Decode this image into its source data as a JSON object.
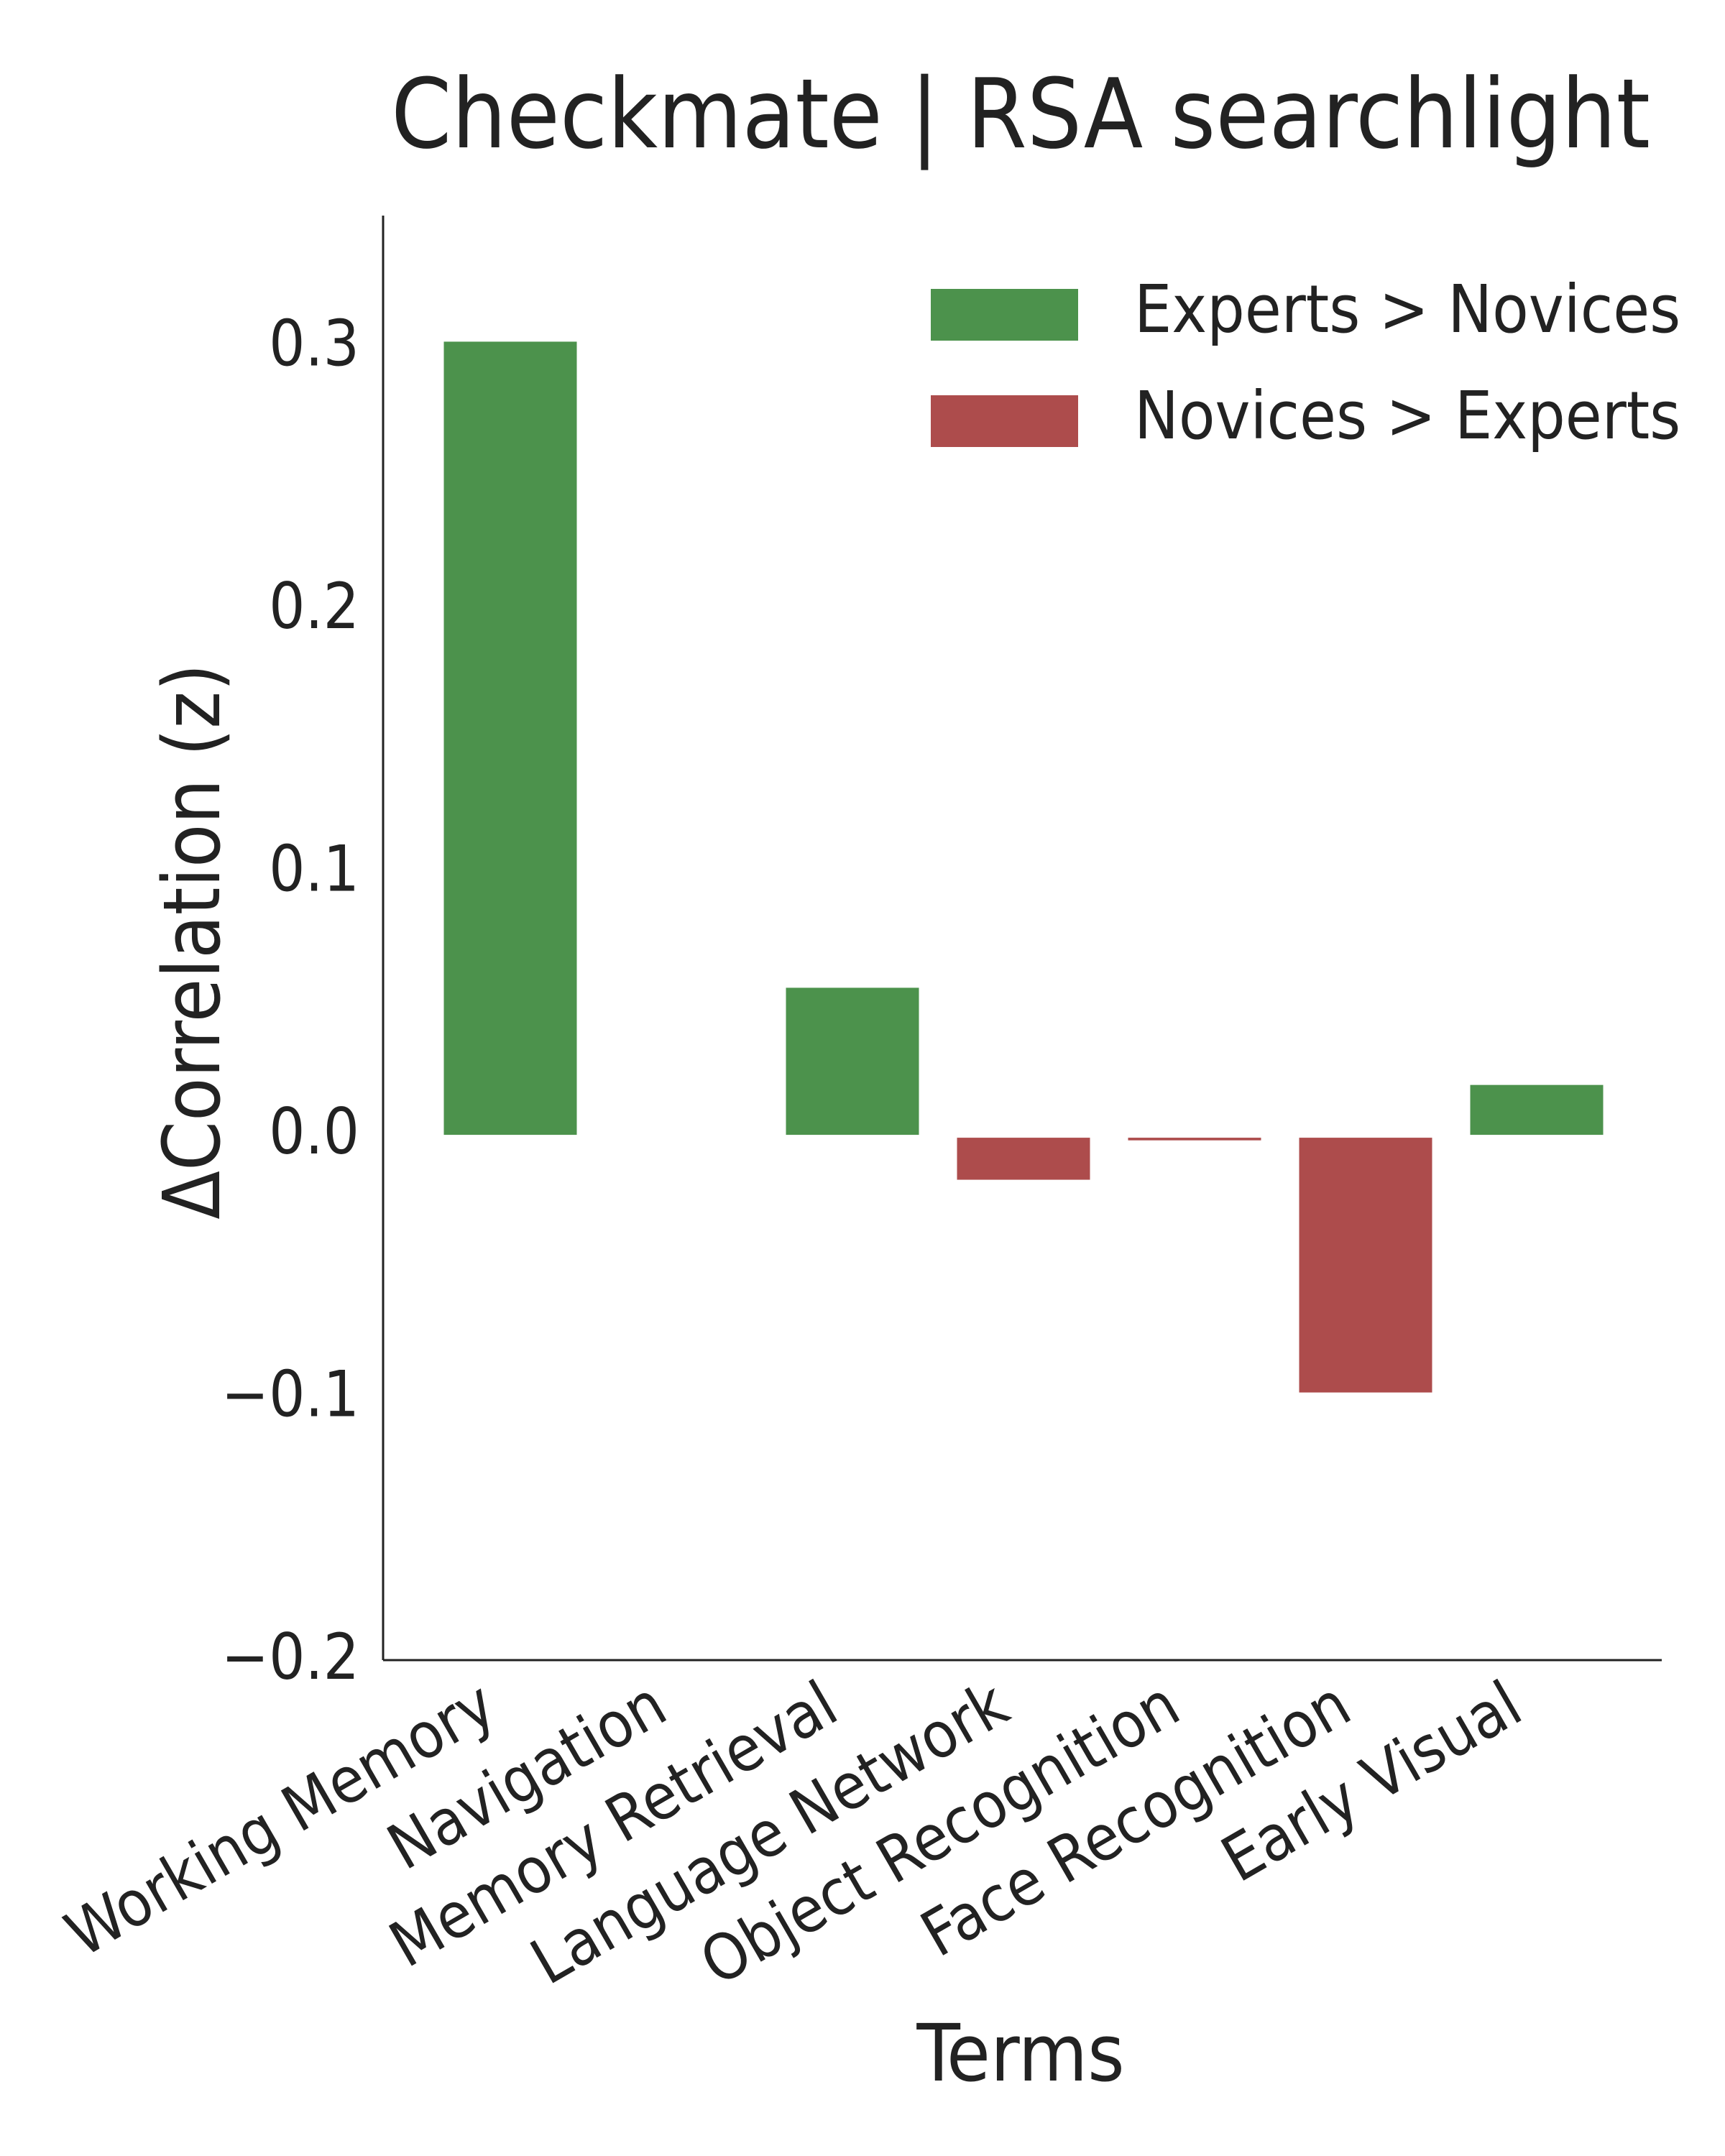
{
  "chart_data": {
    "type": "bar",
    "title": "Checkmate | RSA searchlight",
    "xlabel": "Terms",
    "ylabel": "ΔCorrelation (z)",
    "ylim": [
      -0.2,
      0.35
    ],
    "yticks": [
      -0.2,
      -0.1,
      0.0,
      0.1,
      0.2,
      0.3
    ],
    "ytick_labels": [
      "−0.2",
      "−0.1",
      "0.0",
      "0.1",
      "0.2",
      "0.3"
    ],
    "categories": [
      "Working Memory",
      "Navigation",
      "Memory Retrieval",
      "Language Network",
      "Object Recognition",
      "Face Recognition",
      "Early Visual"
    ],
    "values": [
      0.302,
      0.0,
      0.056,
      -0.016,
      -0.001,
      -0.097,
      0.019
    ],
    "grid": false,
    "legend": {
      "placement": "top-right",
      "entries": [
        {
          "label": "Experts > Novices",
          "color": "#4c924c"
        },
        {
          "label": "Novices > Experts",
          "color": "#ad4c4c"
        }
      ]
    },
    "colors": {
      "positive": "#4c924c",
      "negative": "#ad4c4c",
      "axis": "#222222"
    }
  }
}
